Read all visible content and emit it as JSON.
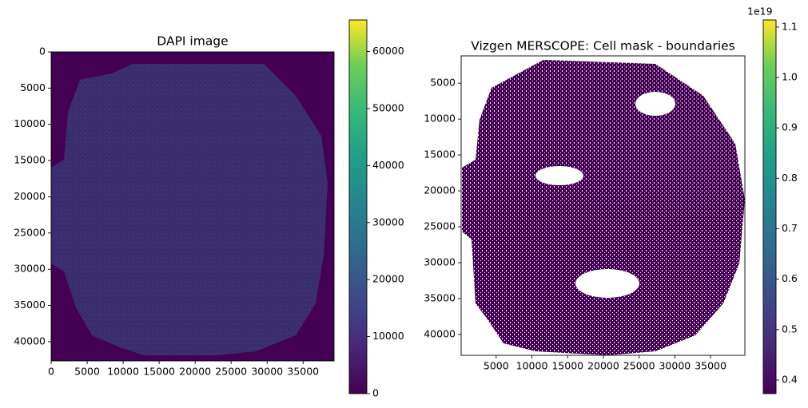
{
  "chart_data": [
    {
      "type": "image",
      "title": "DAPI image",
      "xlim": [
        0,
        39300
      ],
      "ylim": [
        42650,
        0
      ],
      "xticks": [
        0,
        5000,
        10000,
        15000,
        20000,
        25000,
        30000,
        35000
      ],
      "yticks": [
        0,
        5000,
        10000,
        15000,
        20000,
        25000,
        30000,
        35000,
        40000
      ],
      "clim": [
        0,
        65535
      ],
      "cticks": [
        0,
        10000,
        20000,
        30000,
        40000,
        50000,
        60000
      ],
      "colormap": "viridis"
    },
    {
      "type": "image",
      "title": "Vizgen MERSCOPE: Cell mask - boundaries",
      "xlim": [
        100,
        39800
      ],
      "ylim": [
        42900,
        1200
      ],
      "xticks": [
        5000,
        10000,
        15000,
        20000,
        25000,
        30000,
        35000
      ],
      "yticks": [
        5000,
        10000,
        15000,
        20000,
        25000,
        30000,
        35000,
        40000
      ],
      "clim": [
        0.373,
        1.114
      ],
      "cticks": [
        0.4,
        0.5,
        0.6,
        0.7,
        0.8,
        0.9,
        {
          "value": 1,
          "label": "1.0"
        },
        1.1
      ],
      "offset_text": "1e19",
      "colormap": "viridis"
    }
  ]
}
